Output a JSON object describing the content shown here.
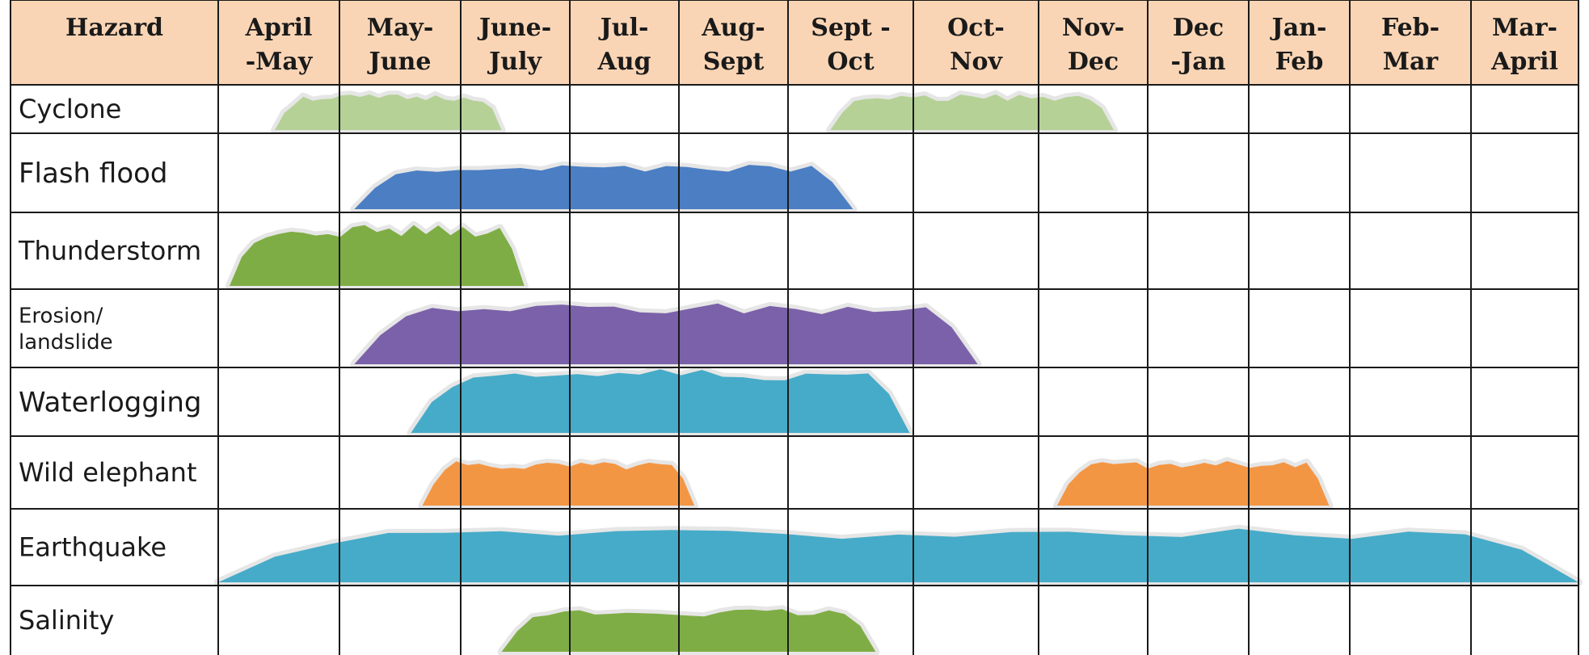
{
  "chart_data": {
    "type": "table",
    "header": {
      "hazard_label": "Hazard",
      "months": [
        [
          "April",
          "-May"
        ],
        [
          "May-",
          "June"
        ],
        [
          "June-",
          "July"
        ],
        [
          "Jul-",
          "Aug"
        ],
        [
          "Aug-",
          "Sept"
        ],
        [
          "Sept -",
          "Oct"
        ],
        [
          "Oct-",
          "Nov"
        ],
        [
          "Nov-",
          "Dec"
        ],
        [
          "Dec",
          "-Jan"
        ],
        [
          "Jan-",
          "Feb"
        ],
        [
          "Feb-",
          "Mar"
        ],
        [
          "Mar-",
          "April"
        ]
      ]
    },
    "hazards": [
      {
        "name": [
          "Cyclone"
        ],
        "color": "#b5d196",
        "periods": [
          [
            0.5,
            2.5
          ],
          [
            5.4,
            7.9
          ]
        ]
      },
      {
        "name": [
          "Flash flood"
        ],
        "color": "#4b7ec3",
        "periods": [
          [
            1.2,
            5.6
          ]
        ]
      },
      {
        "name": [
          "Thunderstorm"
        ],
        "color": "#7fad45",
        "periods": [
          [
            0.1,
            2.7
          ]
        ]
      },
      {
        "name": [
          "Erosion/",
          "landslide"
        ],
        "color": "#7b61a9",
        "periods": [
          [
            1.2,
            6.7
          ]
        ]
      },
      {
        "name": [
          "Waterlogging"
        ],
        "color": "#46abc8",
        "periods": [
          [
            1.7,
            6.1
          ]
        ]
      },
      {
        "name": [
          "Wild elephant"
        ],
        "color": "#f39644",
        "periods": [
          [
            1.8,
            4.2
          ],
          [
            7.4,
            9.8
          ]
        ]
      },
      {
        "name": [
          "Earthquake"
        ],
        "color": "#46abc8",
        "periods": [
          [
            0.0,
            12.0
          ]
        ]
      },
      {
        "name": [
          "Salinity"
        ],
        "color": "#7fad45",
        "periods": [
          [
            2.5,
            5.8
          ]
        ]
      }
    ],
    "colors": {
      "header_bg": "#fad5b5",
      "grid": "#1a1a1a"
    }
  }
}
